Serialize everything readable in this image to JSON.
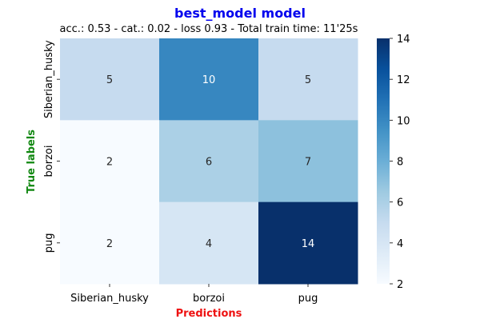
{
  "chart_data": {
    "type": "heatmap",
    "title": "best_model model",
    "subtitle": "acc.: 0.53 - cat.: 0.02 - loss 0.93 - Total train time: 11'25s",
    "xlabel": "Predictions",
    "ylabel": "True labels",
    "x_categories": [
      "Siberian_husky",
      "borzoi",
      "pug"
    ],
    "y_categories": [
      "Siberian_husky",
      "borzoi",
      "pug"
    ],
    "values": [
      [
        5,
        10,
        5
      ],
      [
        2,
        6,
        7
      ],
      [
        2,
        4,
        14
      ]
    ],
    "colorbar": {
      "min": 2,
      "max": 14,
      "ticks": [
        2,
        4,
        6,
        8,
        10,
        12,
        14
      ],
      "colormap": "Blues"
    },
    "colors": {
      "title": "#0000ee",
      "xlabel": "#ee1111",
      "ylabel": "#118811"
    },
    "grid": false
  }
}
